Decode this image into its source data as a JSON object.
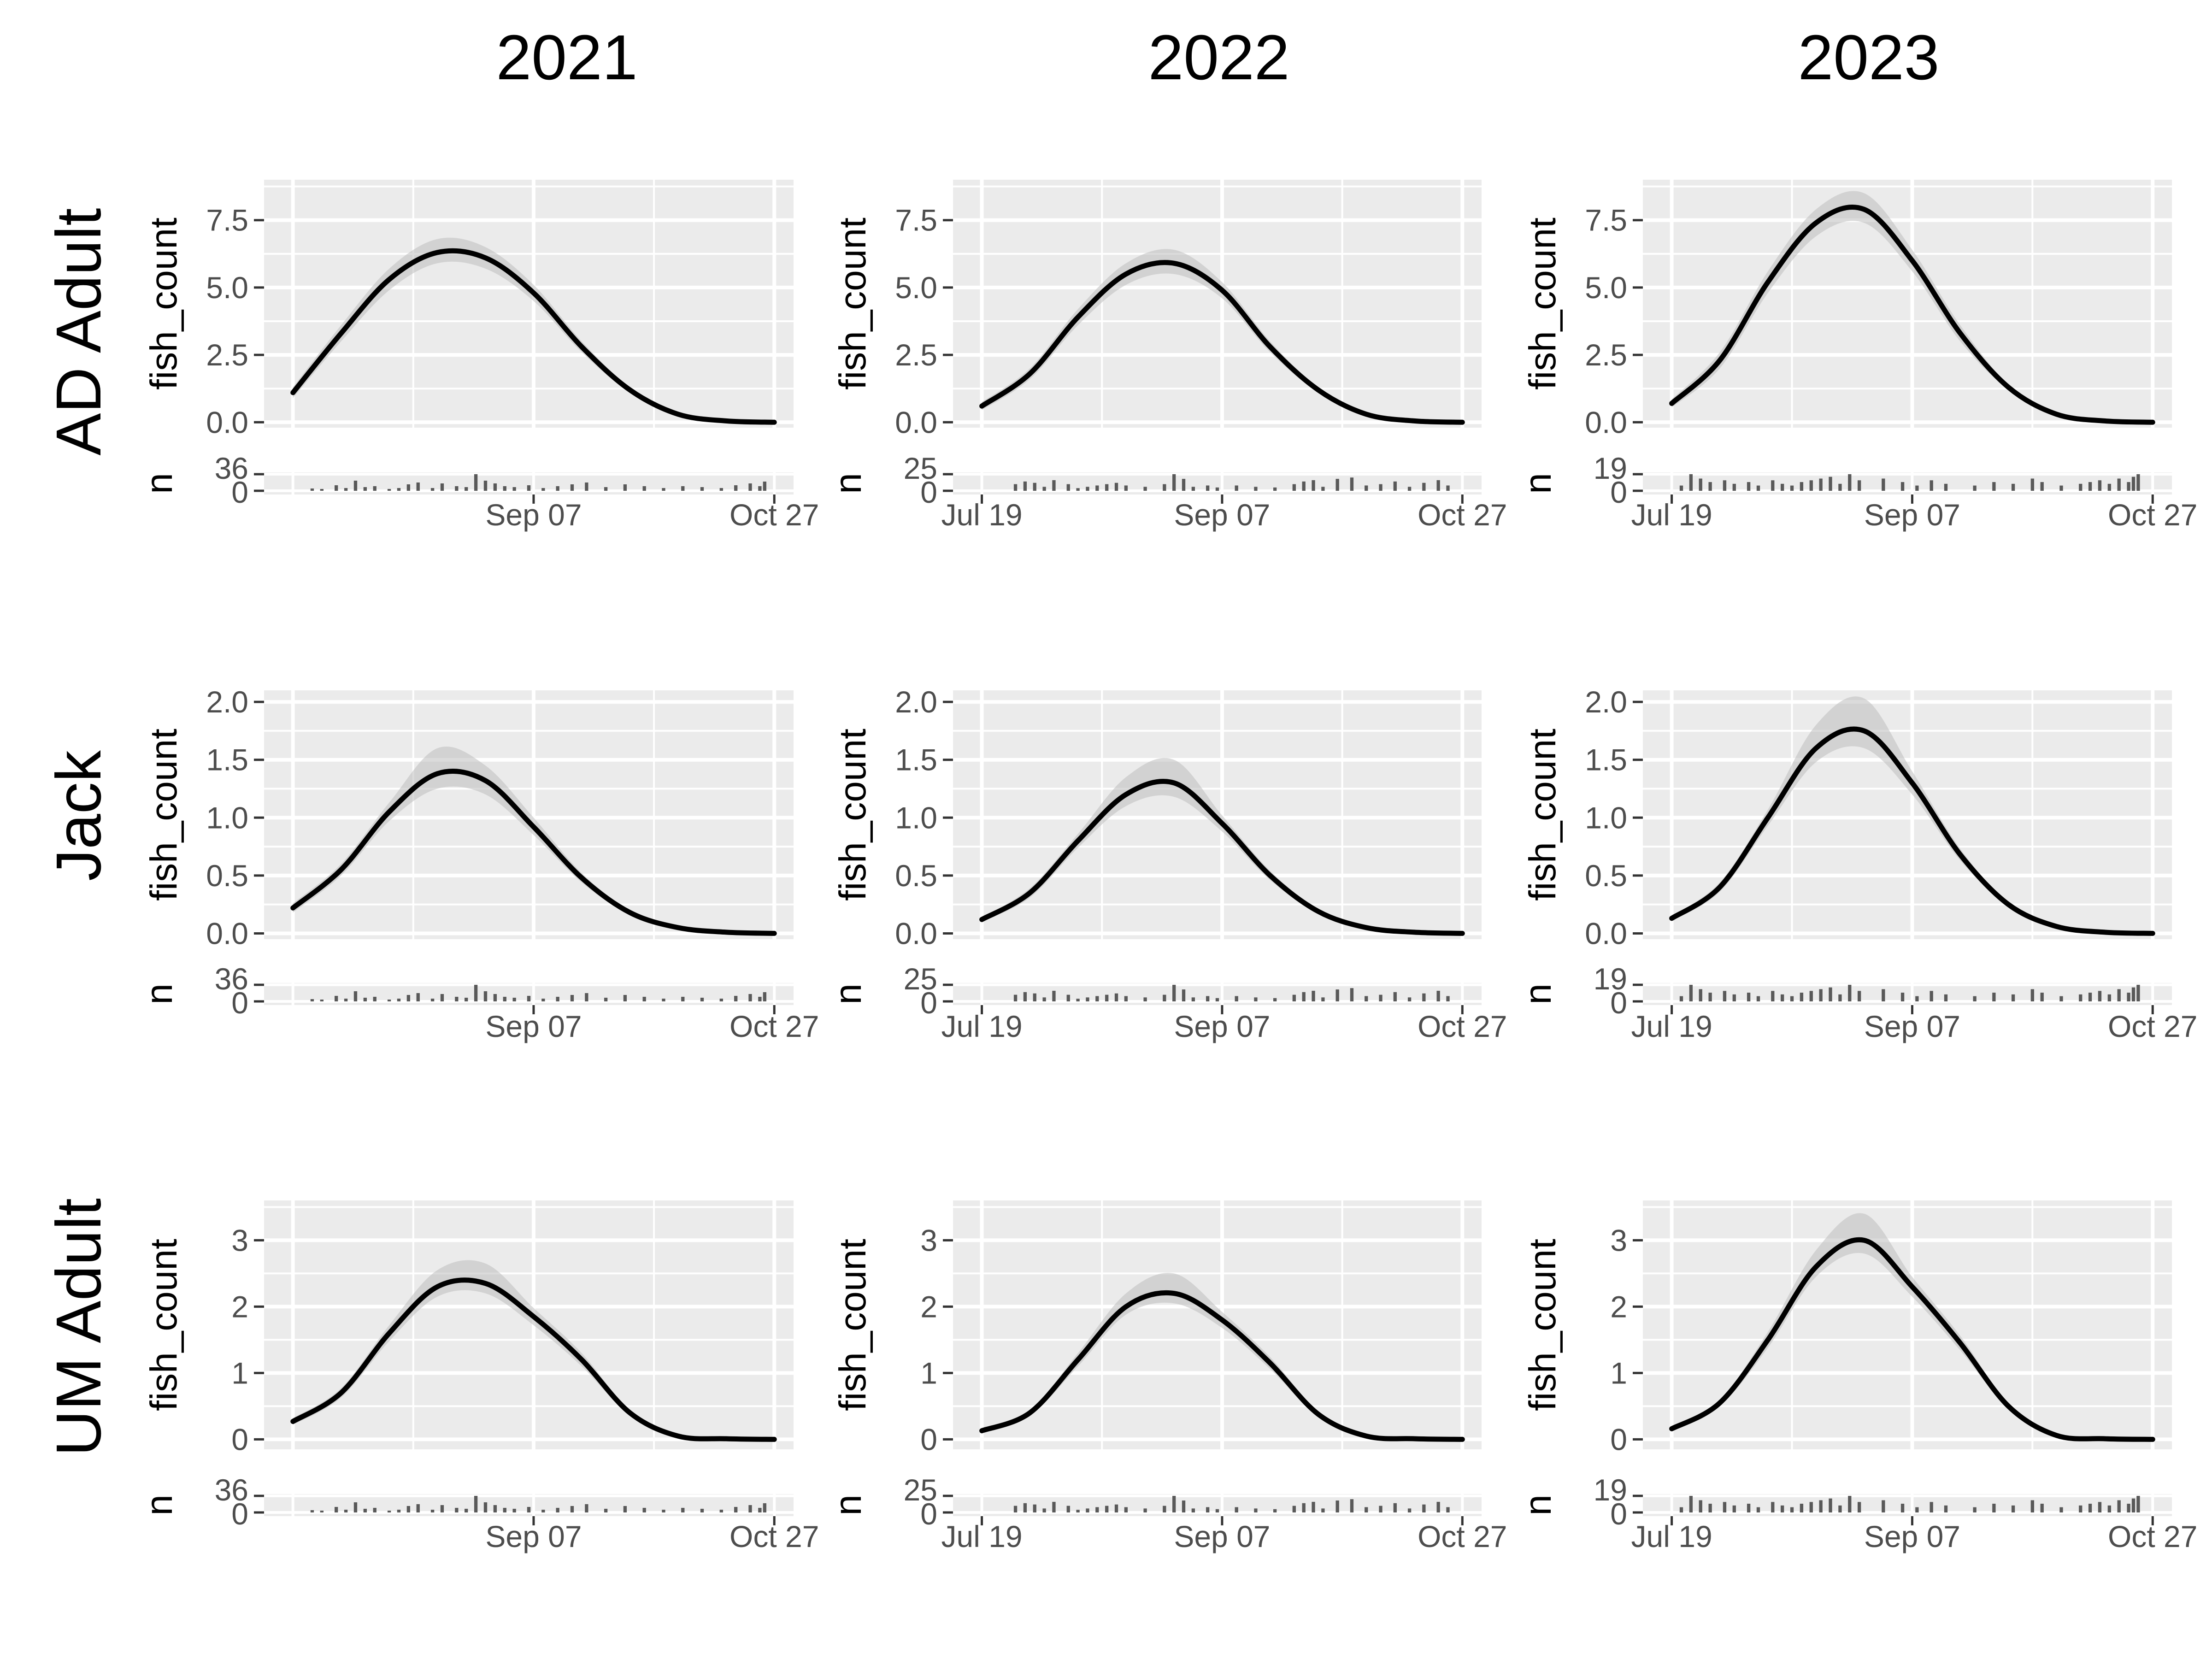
{
  "figure": {
    "column_titles": [
      "2021",
      "2022",
      "2023"
    ],
    "row_titles": [
      "AD Adult",
      "Jack",
      "UM Adult"
    ],
    "main_ylabel": "fish_count",
    "count_ylabel": "n",
    "x_tick_labels": [
      "Jul 19",
      "Sep 07",
      "Oct 27"
    ]
  },
  "chart_data": {
    "type": "line",
    "x_axis": {
      "type": "date",
      "range": [
        "2000-07-13",
        "2000-10-31"
      ],
      "ticks": [
        "Jul 19",
        "Sep 07",
        "Oct 27"
      ]
    },
    "rows": [
      {
        "name": "AD Adult",
        "panels": [
          {
            "year": "2021",
            "ylim": [
              -0.2,
              9.0
            ],
            "yticks": [
              "0.0",
              "2.5",
              "5.0",
              "7.5"
            ],
            "show_jul19_tick": false,
            "x": [
              "2000-07-19",
              "2000-07-29",
              "2000-08-08",
              "2000-08-18",
              "2000-08-28",
              "2000-09-07",
              "2000-09-17",
              "2000-09-27",
              "2000-10-07",
              "2000-10-17",
              "2000-10-27"
            ],
            "fit": [
              1.1,
              3.3,
              5.3,
              6.3,
              6.1,
              4.8,
              2.8,
              1.2,
              0.3,
              0.05,
              0.0
            ],
            "lower": [
              0.9,
              3.0,
              4.9,
              5.9,
              5.7,
              4.5,
              2.6,
              1.1,
              0.25,
              0.03,
              0.0
            ],
            "upper": [
              1.3,
              3.6,
              5.7,
              6.8,
              6.5,
              5.1,
              3.0,
              1.3,
              0.35,
              0.07,
              0.01
            ]
          },
          {
            "year": "2022",
            "ylim": [
              -0.2,
              9.0
            ],
            "yticks": [
              "0.0",
              "2.5",
              "5.0",
              "7.5"
            ],
            "show_jul19_tick": true,
            "x": [
              "2000-07-19",
              "2000-07-29",
              "2000-08-08",
              "2000-08-18",
              "2000-08-28",
              "2000-09-07",
              "2000-09-17",
              "2000-09-27",
              "2000-10-07",
              "2000-10-17",
              "2000-10-27"
            ],
            "fit": [
              0.6,
              1.8,
              3.9,
              5.5,
              5.9,
              4.9,
              2.8,
              1.2,
              0.3,
              0.05,
              0.0
            ],
            "lower": [
              0.45,
              1.6,
              3.6,
              5.1,
              5.5,
              4.6,
              2.6,
              1.1,
              0.25,
              0.03,
              0.0
            ],
            "upper": [
              0.75,
              2.0,
              4.2,
              5.9,
              6.4,
              5.2,
              3.0,
              1.3,
              0.35,
              0.07,
              0.01
            ]
          },
          {
            "year": "2023",
            "ylim": [
              -0.2,
              9.0
            ],
            "yticks": [
              "0.0",
              "2.5",
              "5.0",
              "7.5"
            ],
            "show_jul19_tick": true,
            "x": [
              "2000-07-19",
              "2000-07-29",
              "2000-08-08",
              "2000-08-18",
              "2000-08-28",
              "2000-09-07",
              "2000-09-17",
              "2000-09-27",
              "2000-10-07",
              "2000-10-17",
              "2000-10-27"
            ],
            "fit": [
              0.7,
              2.3,
              5.2,
              7.4,
              7.9,
              6.0,
              3.3,
              1.3,
              0.3,
              0.05,
              0.0
            ],
            "lower": [
              0.55,
              2.0,
              4.8,
              6.9,
              7.4,
              5.6,
              3.0,
              1.2,
              0.25,
              0.03,
              0.0
            ],
            "upper": [
              0.85,
              2.6,
              5.6,
              7.9,
              8.5,
              6.4,
              3.6,
              1.4,
              0.35,
              0.07,
              0.01
            ]
          }
        ]
      },
      {
        "name": "Jack",
        "panels": [
          {
            "year": "2021",
            "ylim": [
              -0.05,
              2.1
            ],
            "yticks": [
              "0.0",
              "0.5",
              "1.0",
              "1.5",
              "2.0"
            ],
            "show_jul19_tick": false,
            "x": [
              "2000-07-19",
              "2000-07-29",
              "2000-08-08",
              "2000-08-18",
              "2000-08-28",
              "2000-09-07",
              "2000-09-17",
              "2000-09-27",
              "2000-10-07",
              "2000-10-17",
              "2000-10-27"
            ],
            "fit": [
              0.22,
              0.55,
              1.05,
              1.38,
              1.32,
              0.92,
              0.48,
              0.18,
              0.05,
              0.01,
              0.0
            ],
            "lower": [
              0.18,
              0.5,
              0.97,
              1.25,
              1.2,
              0.85,
              0.44,
              0.16,
              0.04,
              0.01,
              0.0
            ],
            "upper": [
              0.26,
              0.6,
              1.13,
              1.6,
              1.45,
              1.0,
              0.52,
              0.2,
              0.06,
              0.02,
              0.0
            ]
          },
          {
            "year": "2022",
            "ylim": [
              -0.05,
              2.1
            ],
            "yticks": [
              "0.0",
              "0.5",
              "1.0",
              "1.5",
              "2.0"
            ],
            "show_jul19_tick": true,
            "x": [
              "2000-07-19",
              "2000-07-29",
              "2000-08-08",
              "2000-08-18",
              "2000-08-28",
              "2000-09-07",
              "2000-09-17",
              "2000-09-27",
              "2000-10-07",
              "2000-10-17",
              "2000-10-27"
            ],
            "fit": [
              0.12,
              0.35,
              0.8,
              1.2,
              1.3,
              0.95,
              0.5,
              0.19,
              0.05,
              0.01,
              0.0
            ],
            "lower": [
              0.1,
              0.31,
              0.74,
              1.1,
              1.18,
              0.88,
              0.46,
              0.17,
              0.04,
              0.01,
              0.0
            ],
            "upper": [
              0.14,
              0.39,
              0.86,
              1.35,
              1.5,
              1.02,
              0.54,
              0.21,
              0.06,
              0.02,
              0.0
            ]
          },
          {
            "year": "2023",
            "ylim": [
              -0.05,
              2.1
            ],
            "yticks": [
              "0.0",
              "0.5",
              "1.0",
              "1.5",
              "2.0"
            ],
            "show_jul19_tick": true,
            "x": [
              "2000-07-19",
              "2000-07-29",
              "2000-08-08",
              "2000-08-18",
              "2000-08-28",
              "2000-09-07",
              "2000-09-17",
              "2000-09-27",
              "2000-10-07",
              "2000-10-17",
              "2000-10-27"
            ],
            "fit": [
              0.13,
              0.4,
              1.0,
              1.6,
              1.75,
              1.3,
              0.68,
              0.25,
              0.06,
              0.01,
              0.0
            ],
            "lower": [
              0.11,
              0.36,
              0.93,
              1.48,
              1.6,
              1.2,
              0.63,
              0.23,
              0.05,
              0.01,
              0.0
            ],
            "upper": [
              0.15,
              0.44,
              1.07,
              1.8,
              2.03,
              1.4,
              0.73,
              0.27,
              0.07,
              0.02,
              0.0
            ]
          }
        ]
      },
      {
        "name": "UM Adult",
        "panels": [
          {
            "year": "2021",
            "ylim": [
              -0.15,
              3.6
            ],
            "yticks": [
              "0",
              "1",
              "2",
              "3"
            ],
            "show_jul19_tick": false,
            "x": [
              "2000-07-19",
              "2000-07-29",
              "2000-08-08",
              "2000-08-18",
              "2000-08-28",
              "2000-09-07",
              "2000-09-17",
              "2000-09-27",
              "2000-10-07",
              "2000-10-17",
              "2000-10-27"
            ],
            "fit": [
              0.27,
              0.7,
              1.6,
              2.3,
              2.35,
              1.85,
              1.2,
              0.4,
              0.05,
              0.01,
              0.0
            ],
            "lower": [
              0.22,
              0.63,
              1.48,
              2.15,
              2.2,
              1.72,
              1.1,
              0.36,
              0.04,
              0.01,
              0.0
            ],
            "upper": [
              0.32,
              0.77,
              1.72,
              2.55,
              2.65,
              1.98,
              1.3,
              0.44,
              0.06,
              0.02,
              0.0
            ]
          },
          {
            "year": "2022",
            "ylim": [
              -0.15,
              3.6
            ],
            "yticks": [
              "0",
              "1",
              "2",
              "3"
            ],
            "show_jul19_tick": true,
            "x": [
              "2000-07-19",
              "2000-07-29",
              "2000-08-08",
              "2000-08-18",
              "2000-08-28",
              "2000-09-07",
              "2000-09-17",
              "2000-09-27",
              "2000-10-07",
              "2000-10-17",
              "2000-10-27"
            ],
            "fit": [
              0.13,
              0.4,
              1.2,
              2.0,
              2.2,
              1.8,
              1.15,
              0.38,
              0.05,
              0.01,
              0.0
            ],
            "lower": [
              0.11,
              0.36,
              1.1,
              1.88,
              2.05,
              1.68,
              1.06,
              0.34,
              0.04,
              0.01,
              0.0
            ],
            "upper": [
              0.15,
              0.44,
              1.3,
              2.2,
              2.5,
              1.92,
              1.24,
              0.42,
              0.06,
              0.02,
              0.0
            ]
          },
          {
            "year": "2023",
            "ylim": [
              -0.15,
              3.6
            ],
            "yticks": [
              "0",
              "1",
              "2",
              "3"
            ],
            "show_jul19_tick": true,
            "x": [
              "2000-07-19",
              "2000-07-29",
              "2000-08-08",
              "2000-08-18",
              "2000-08-28",
              "2000-09-07",
              "2000-09-17",
              "2000-09-27",
              "2000-10-07",
              "2000-10-17",
              "2000-10-27"
            ],
            "fit": [
              0.16,
              0.55,
              1.5,
              2.6,
              3.0,
              2.3,
              1.45,
              0.5,
              0.06,
              0.01,
              0.0
            ],
            "lower": [
              0.13,
              0.5,
              1.38,
              2.45,
              2.8,
              2.15,
              1.34,
              0.46,
              0.05,
              0.01,
              0.0
            ],
            "upper": [
              0.19,
              0.6,
              1.62,
              2.85,
              3.4,
              2.45,
              1.56,
              0.54,
              0.07,
              0.02,
              0.0
            ]
          }
        ]
      }
    ],
    "counts": [
      {
        "year": "2021",
        "ymax": 36,
        "yticks": [
          "0",
          "36"
        ],
        "x": [
          "2000-07-23",
          "2000-07-25",
          "2000-07-28",
          "2000-07-30",
          "2000-08-01",
          "2000-08-03",
          "2000-08-05",
          "2000-08-08",
          "2000-08-10",
          "2000-08-12",
          "2000-08-14",
          "2000-08-17",
          "2000-08-19",
          "2000-08-22",
          "2000-08-24",
          "2000-08-26",
          "2000-08-28",
          "2000-08-30",
          "2000-09-01",
          "2000-09-03",
          "2000-09-06",
          "2000-09-09",
          "2000-09-12",
          "2000-09-15",
          "2000-09-18",
          "2000-09-22",
          "2000-09-26",
          "2000-09-30",
          "2000-10-04",
          "2000-10-08",
          "2000-10-12",
          "2000-10-16",
          "2000-10-19",
          "2000-10-22",
          "2000-10-24",
          "2000-10-25"
        ],
        "n": [
          5,
          4,
          12,
          6,
          22,
          8,
          10,
          4,
          6,
          14,
          18,
          6,
          16,
          10,
          8,
          36,
          22,
          16,
          10,
          8,
          12,
          6,
          10,
          14,
          18,
          8,
          14,
          10,
          6,
          10,
          8,
          6,
          12,
          16,
          10,
          20
        ]
      },
      {
        "year": "2022",
        "ymax": 25,
        "yticks": [
          "0",
          "25"
        ],
        "x": [
          "2000-07-26",
          "2000-07-28",
          "2000-07-30",
          "2000-08-01",
          "2000-08-03",
          "2000-08-06",
          "2000-08-08",
          "2000-08-10",
          "2000-08-12",
          "2000-08-14",
          "2000-08-16",
          "2000-08-18",
          "2000-08-22",
          "2000-08-26",
          "2000-08-28",
          "2000-08-30",
          "2000-09-01",
          "2000-09-04",
          "2000-09-06",
          "2000-09-10",
          "2000-09-14",
          "2000-09-18",
          "2000-09-22",
          "2000-09-24",
          "2000-09-26",
          "2000-09-28",
          "2000-10-01",
          "2000-10-04",
          "2000-10-07",
          "2000-10-10",
          "2000-10-13",
          "2000-10-16",
          "2000-10-19",
          "2000-10-22",
          "2000-10-24"
        ],
        "n": [
          10,
          14,
          12,
          6,
          16,
          10,
          4,
          6,
          8,
          10,
          12,
          8,
          6,
          10,
          25,
          18,
          6,
          8,
          5,
          8,
          6,
          5,
          10,
          14,
          16,
          6,
          18,
          20,
          8,
          10,
          14,
          6,
          12,
          16,
          8
        ]
      },
      {
        "year": "2023",
        "ymax": 19,
        "yticks": [
          "0",
          "19"
        ],
        "x": [
          "2000-07-21",
          "2000-07-23",
          "2000-07-25",
          "2000-07-27",
          "2000-07-30",
          "2000-08-01",
          "2000-08-04",
          "2000-08-06",
          "2000-08-09",
          "2000-08-11",
          "2000-08-13",
          "2000-08-15",
          "2000-08-17",
          "2000-08-19",
          "2000-08-21",
          "2000-08-23",
          "2000-08-25",
          "2000-08-27",
          "2000-09-01",
          "2000-09-05",
          "2000-09-08",
          "2000-09-11",
          "2000-09-14",
          "2000-09-20",
          "2000-09-24",
          "2000-09-28",
          "2000-10-02",
          "2000-10-04",
          "2000-10-08",
          "2000-10-12",
          "2000-10-14",
          "2000-10-16",
          "2000-10-18",
          "2000-10-20",
          "2000-10-22",
          "2000-10-23",
          "2000-10-24"
        ],
        "n": [
          6,
          19,
          14,
          10,
          12,
          8,
          10,
          6,
          12,
          8,
          6,
          10,
          12,
          14,
          16,
          8,
          19,
          12,
          14,
          10,
          6,
          12,
          8,
          6,
          10,
          8,
          14,
          10,
          6,
          8,
          10,
          12,
          8,
          14,
          10,
          16,
          19
        ]
      }
    ]
  }
}
